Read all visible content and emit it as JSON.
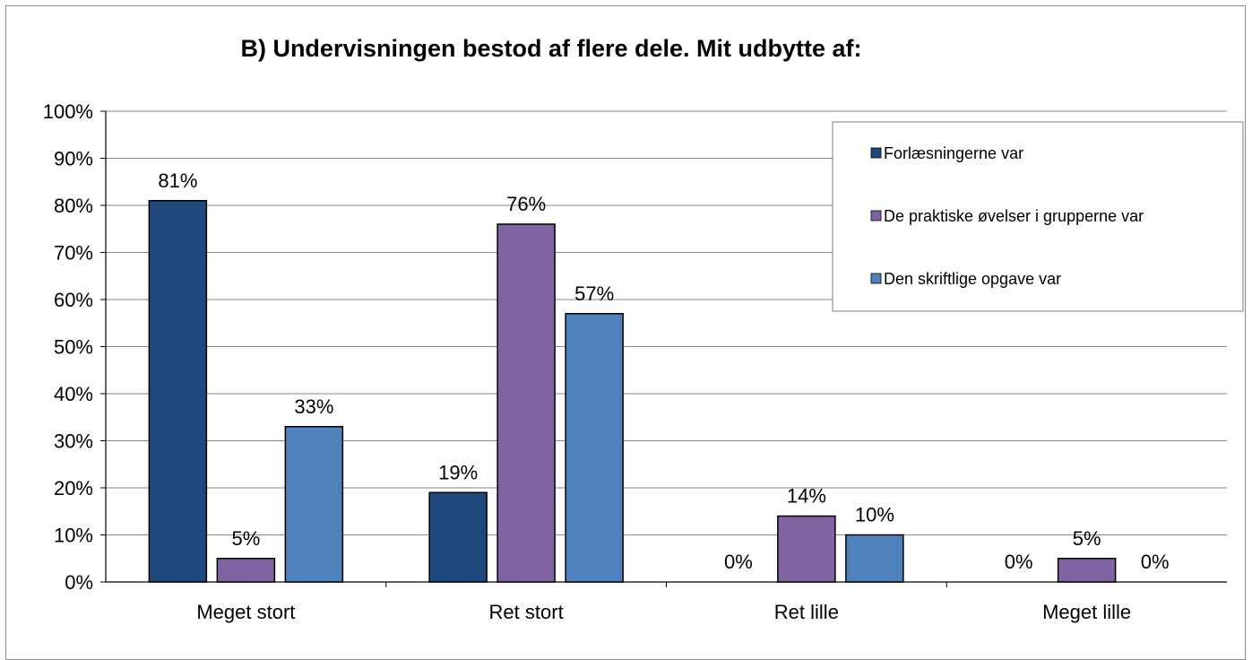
{
  "chart_data": {
    "type": "bar",
    "title": "B) Undervisningen bestod af flere dele. Mit udbytte af:",
    "xlabel": "",
    "ylabel": "",
    "ylim": [
      0,
      100
    ],
    "yticks": [
      "0%",
      "10%",
      "20%",
      "30%",
      "40%",
      "50%",
      "60%",
      "70%",
      "80%",
      "90%",
      "100%"
    ],
    "grid": true,
    "legend_position": "top-right",
    "categories": [
      "Meget stort",
      "Ret stort",
      "Ret lille",
      "Meget lille"
    ],
    "series": [
      {
        "name": "Forlæsningerne var",
        "color": "#1f497d",
        "values": [
          81,
          19,
          0,
          0
        ],
        "labels": [
          "81%",
          "19%",
          "0%",
          "0%"
        ]
      },
      {
        "name": "De praktiske øvelser i grupperne var",
        "color": "#8064a2",
        "values": [
          5,
          76,
          14,
          5
        ],
        "labels": [
          "5%",
          "76%",
          "14%",
          "5%"
        ]
      },
      {
        "name": "Den skriftlige opgave var",
        "color": "#4f81bd",
        "values": [
          33,
          57,
          10,
          0
        ],
        "labels": [
          "33%",
          "57%",
          "10%",
          "0%"
        ]
      }
    ]
  }
}
